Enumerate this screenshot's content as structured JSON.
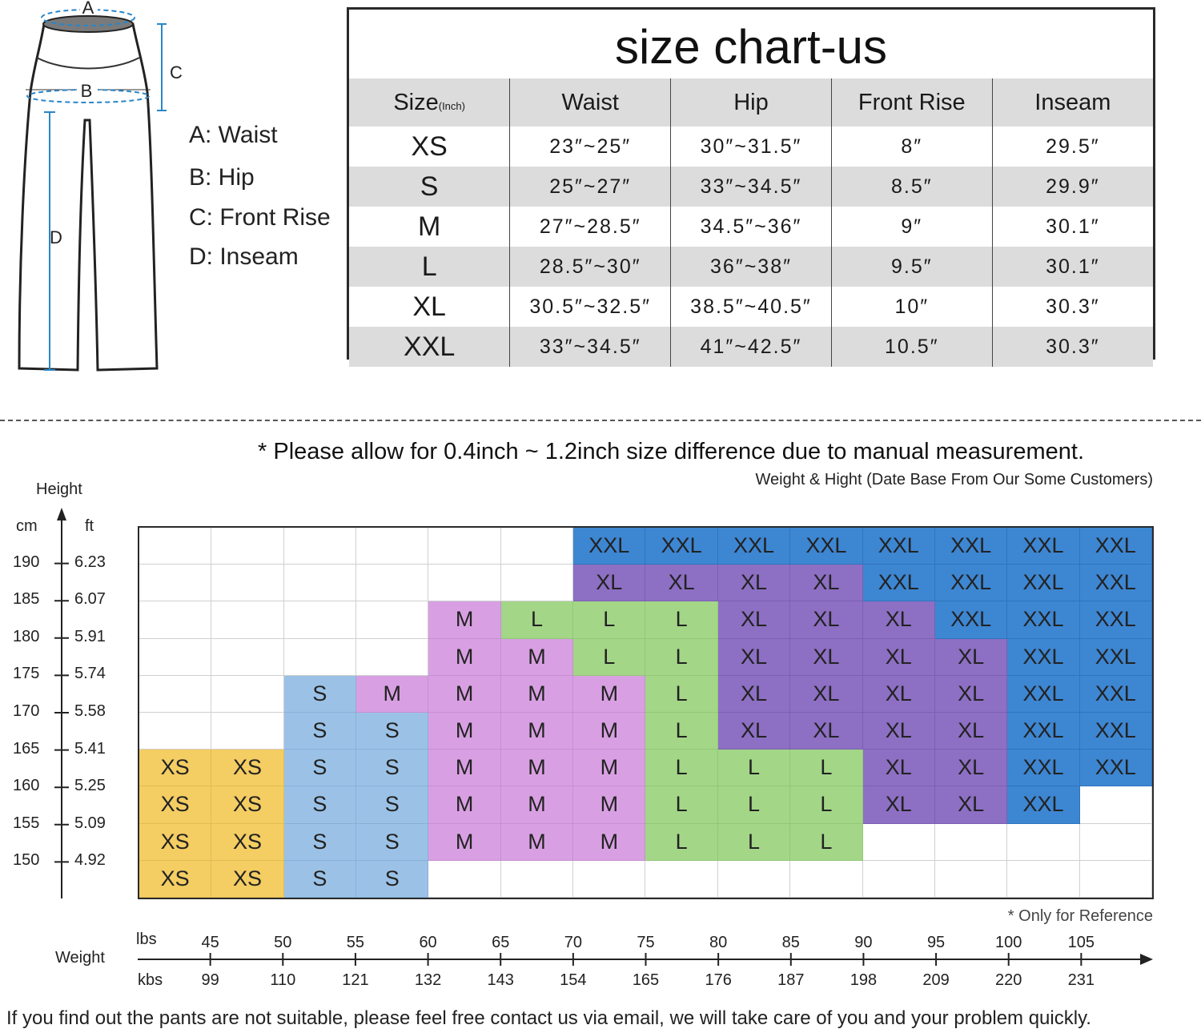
{
  "diagram": {
    "letters": {
      "a": "A",
      "b": "B",
      "c": "C",
      "d": "D"
    },
    "legend": [
      "A: Waist",
      "B: Hip",
      "C: Front Rise",
      "D: Inseam"
    ]
  },
  "size_table": {
    "title": "size chart-us",
    "header": {
      "size": "Size",
      "unit": "(Inch)",
      "waist": "Waist",
      "hip": "Hip",
      "front_rise": "Front Rise",
      "inseam": "Inseam"
    },
    "rows": [
      {
        "size": "XS",
        "waist": "23″~25″",
        "hip": "30″~31.5″",
        "front_rise": "8″",
        "inseam": "29.5″"
      },
      {
        "size": "S",
        "waist": "25″~27″",
        "hip": "33″~34.5″",
        "front_rise": "8.5″",
        "inseam": "29.9″"
      },
      {
        "size": "M",
        "waist": "27″~28.5″",
        "hip": "34.5″~36″",
        "front_rise": "9″",
        "inseam": "30.1″"
      },
      {
        "size": "L",
        "waist": "28.5″~30″",
        "hip": "36″~38″",
        "front_rise": "9.5″",
        "inseam": "30.1″"
      },
      {
        "size": "XL",
        "waist": "30.5″~32.5″",
        "hip": "38.5″~40.5″",
        "front_rise": "10″",
        "inseam": "30.3″"
      },
      {
        "size": "XXL",
        "waist": "33″~34.5″",
        "hip": "41″~42.5″",
        "front_rise": "10.5″",
        "inseam": "30.3″"
      }
    ]
  },
  "notes": {
    "disclaimer_star": "*",
    "disclaimer": "Please allow for 0.4inch ~ 1.2inch size difference due to manual measurement.",
    "source": "Weight & Hight (Date Base From Our Some Customers)",
    "reference": "* Only for Reference",
    "footer": "If you find out the pants are not suitable, please feel free contact us via email, we will take care of you and your problem quickly."
  },
  "colors": {
    "XS": "#f4cd63",
    "S": "#9bc2e6",
    "M": "#d8a0e2",
    "L": "#a3d687",
    "XL": "#8d6fc3",
    "XXL": "#3d86d2"
  },
  "chart_data": {
    "type": "table",
    "y_axis": {
      "label": "Height",
      "unit_left": "cm",
      "unit_right": "ft",
      "cm": [
        "190",
        "185",
        "180",
        "175",
        "170",
        "165",
        "160",
        "155",
        "150"
      ],
      "ft": [
        "6.23",
        "6.07",
        "5.91",
        "5.74",
        "5.58",
        "5.41",
        "5.25",
        "5.09",
        "4.92"
      ]
    },
    "x_axis": {
      "label": "Weight",
      "unit_top": "lbs",
      "unit_bottom": "kbs",
      "kg": [
        "45",
        "50",
        "55",
        "60",
        "65",
        "70",
        "75",
        "80",
        "85",
        "90",
        "95",
        "100",
        "105"
      ],
      "lbs": [
        "99",
        "110",
        "121",
        "132",
        "143",
        "154",
        "165",
        "176",
        "187",
        "198",
        "209",
        "220",
        "231"
      ]
    },
    "grid": [
      [
        "",
        "",
        "",
        "",
        "",
        "",
        "XXL",
        "XXL",
        "XXL",
        "XXL",
        "XXL",
        "XXL",
        "XXL",
        "XXL"
      ],
      [
        "",
        "",
        "",
        "",
        "",
        "",
        "XL",
        "XL",
        "XL",
        "XL",
        "XXL",
        "XXL",
        "XXL",
        "XXL"
      ],
      [
        "",
        "",
        "",
        "",
        "M",
        "L",
        "L",
        "L",
        "XL",
        "XL",
        "XL",
        "XXL",
        "XXL",
        "XXL"
      ],
      [
        "",
        "",
        "",
        "",
        "M",
        "M",
        "L",
        "L",
        "XL",
        "XL",
        "XL",
        "XL",
        "XXL",
        "XXL"
      ],
      [
        "",
        "",
        "S",
        "M",
        "M",
        "M",
        "M",
        "L",
        "XL",
        "XL",
        "XL",
        "XL",
        "XXL",
        "XXL"
      ],
      [
        "",
        "",
        "S",
        "S",
        "M",
        "M",
        "M",
        "L",
        "XL",
        "XL",
        "XL",
        "XL",
        "XXL",
        "XXL"
      ],
      [
        "XS",
        "XS",
        "S",
        "S",
        "M",
        "M",
        "M",
        "L",
        "L",
        "L",
        "XL",
        "XL",
        "XXL",
        "XXL"
      ],
      [
        "XS",
        "XS",
        "S",
        "S",
        "M",
        "M",
        "M",
        "L",
        "L",
        "L",
        "XL",
        "XL",
        "XXL",
        ""
      ],
      [
        "XS",
        "XS",
        "S",
        "S",
        "M",
        "M",
        "M",
        "L",
        "L",
        "L",
        "",
        "",
        "",
        ""
      ],
      [
        "XS",
        "XS",
        "S",
        "S",
        "",
        "",
        "",
        "",
        "",
        "",
        "",
        "",
        "",
        ""
      ]
    ]
  }
}
